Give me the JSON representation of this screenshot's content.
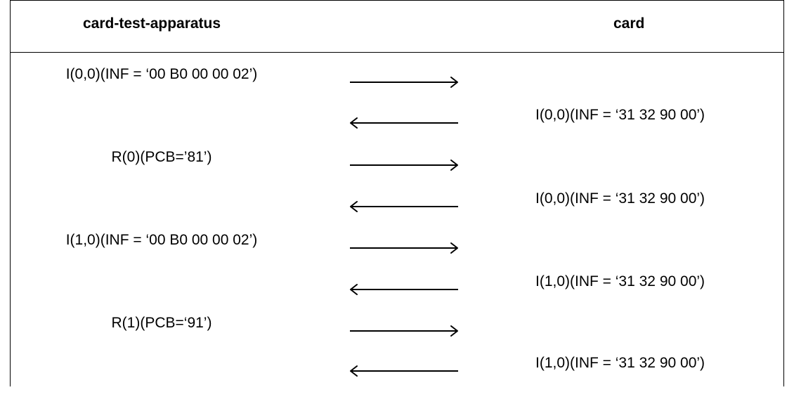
{
  "header": {
    "left": "card-test-apparatus",
    "right": "card"
  },
  "rows": [
    {
      "side": "left",
      "text": "I(0,0)(INF = ‘00 B0 00 00 02’)",
      "direction": "right"
    },
    {
      "side": "right",
      "text": "I(0,0)(INF = ‘31 32 90 00’)",
      "direction": "left"
    },
    {
      "side": "left",
      "text": "R(0)(PCB=’81’)",
      "direction": "right"
    },
    {
      "side": "right",
      "text": "I(0,0)(INF = ‘31 32 90 00’)",
      "direction": "left"
    },
    {
      "side": "left",
      "text": "I(1,0)(INF = ‘00 B0 00 00 02’)",
      "direction": "right"
    },
    {
      "side": "right",
      "text": "I(1,0)(INF = ‘31 32 90 00’)",
      "direction": "left"
    },
    {
      "side": "left",
      "text": "R(1)(PCB=‘91’)",
      "direction": "right"
    },
    {
      "side": "right",
      "text": "I(1,0)(INF = ‘31 32 90 00’)",
      "direction": "left"
    }
  ]
}
